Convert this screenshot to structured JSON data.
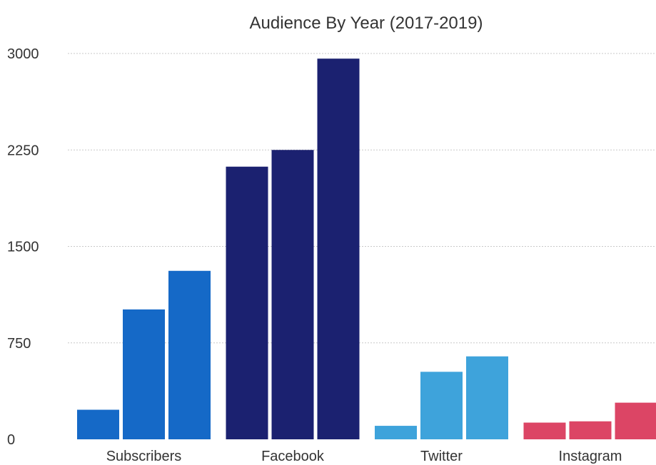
{
  "chart_data": {
    "type": "bar",
    "title": "Audience By Year (2017-2019)",
    "xlabel": "",
    "ylabel": "",
    "ylim": [
      0,
      3000
    ],
    "yticks": [
      0,
      750,
      1500,
      2250,
      3000
    ],
    "grid": true,
    "legend": "none",
    "categories": [
      "Subscribers",
      "Facebook",
      "Twitter",
      "Instagram"
    ],
    "series": [
      {
        "values": [
          230,
          2120,
          105,
          130
        ]
      },
      {
        "values": [
          1010,
          2250,
          525,
          140
        ]
      },
      {
        "values": [
          1310,
          2960,
          645,
          285
        ]
      }
    ],
    "category_colors": [
      "#1569c7",
      "#1b2170",
      "#3ea3db",
      "#dc4565"
    ]
  }
}
